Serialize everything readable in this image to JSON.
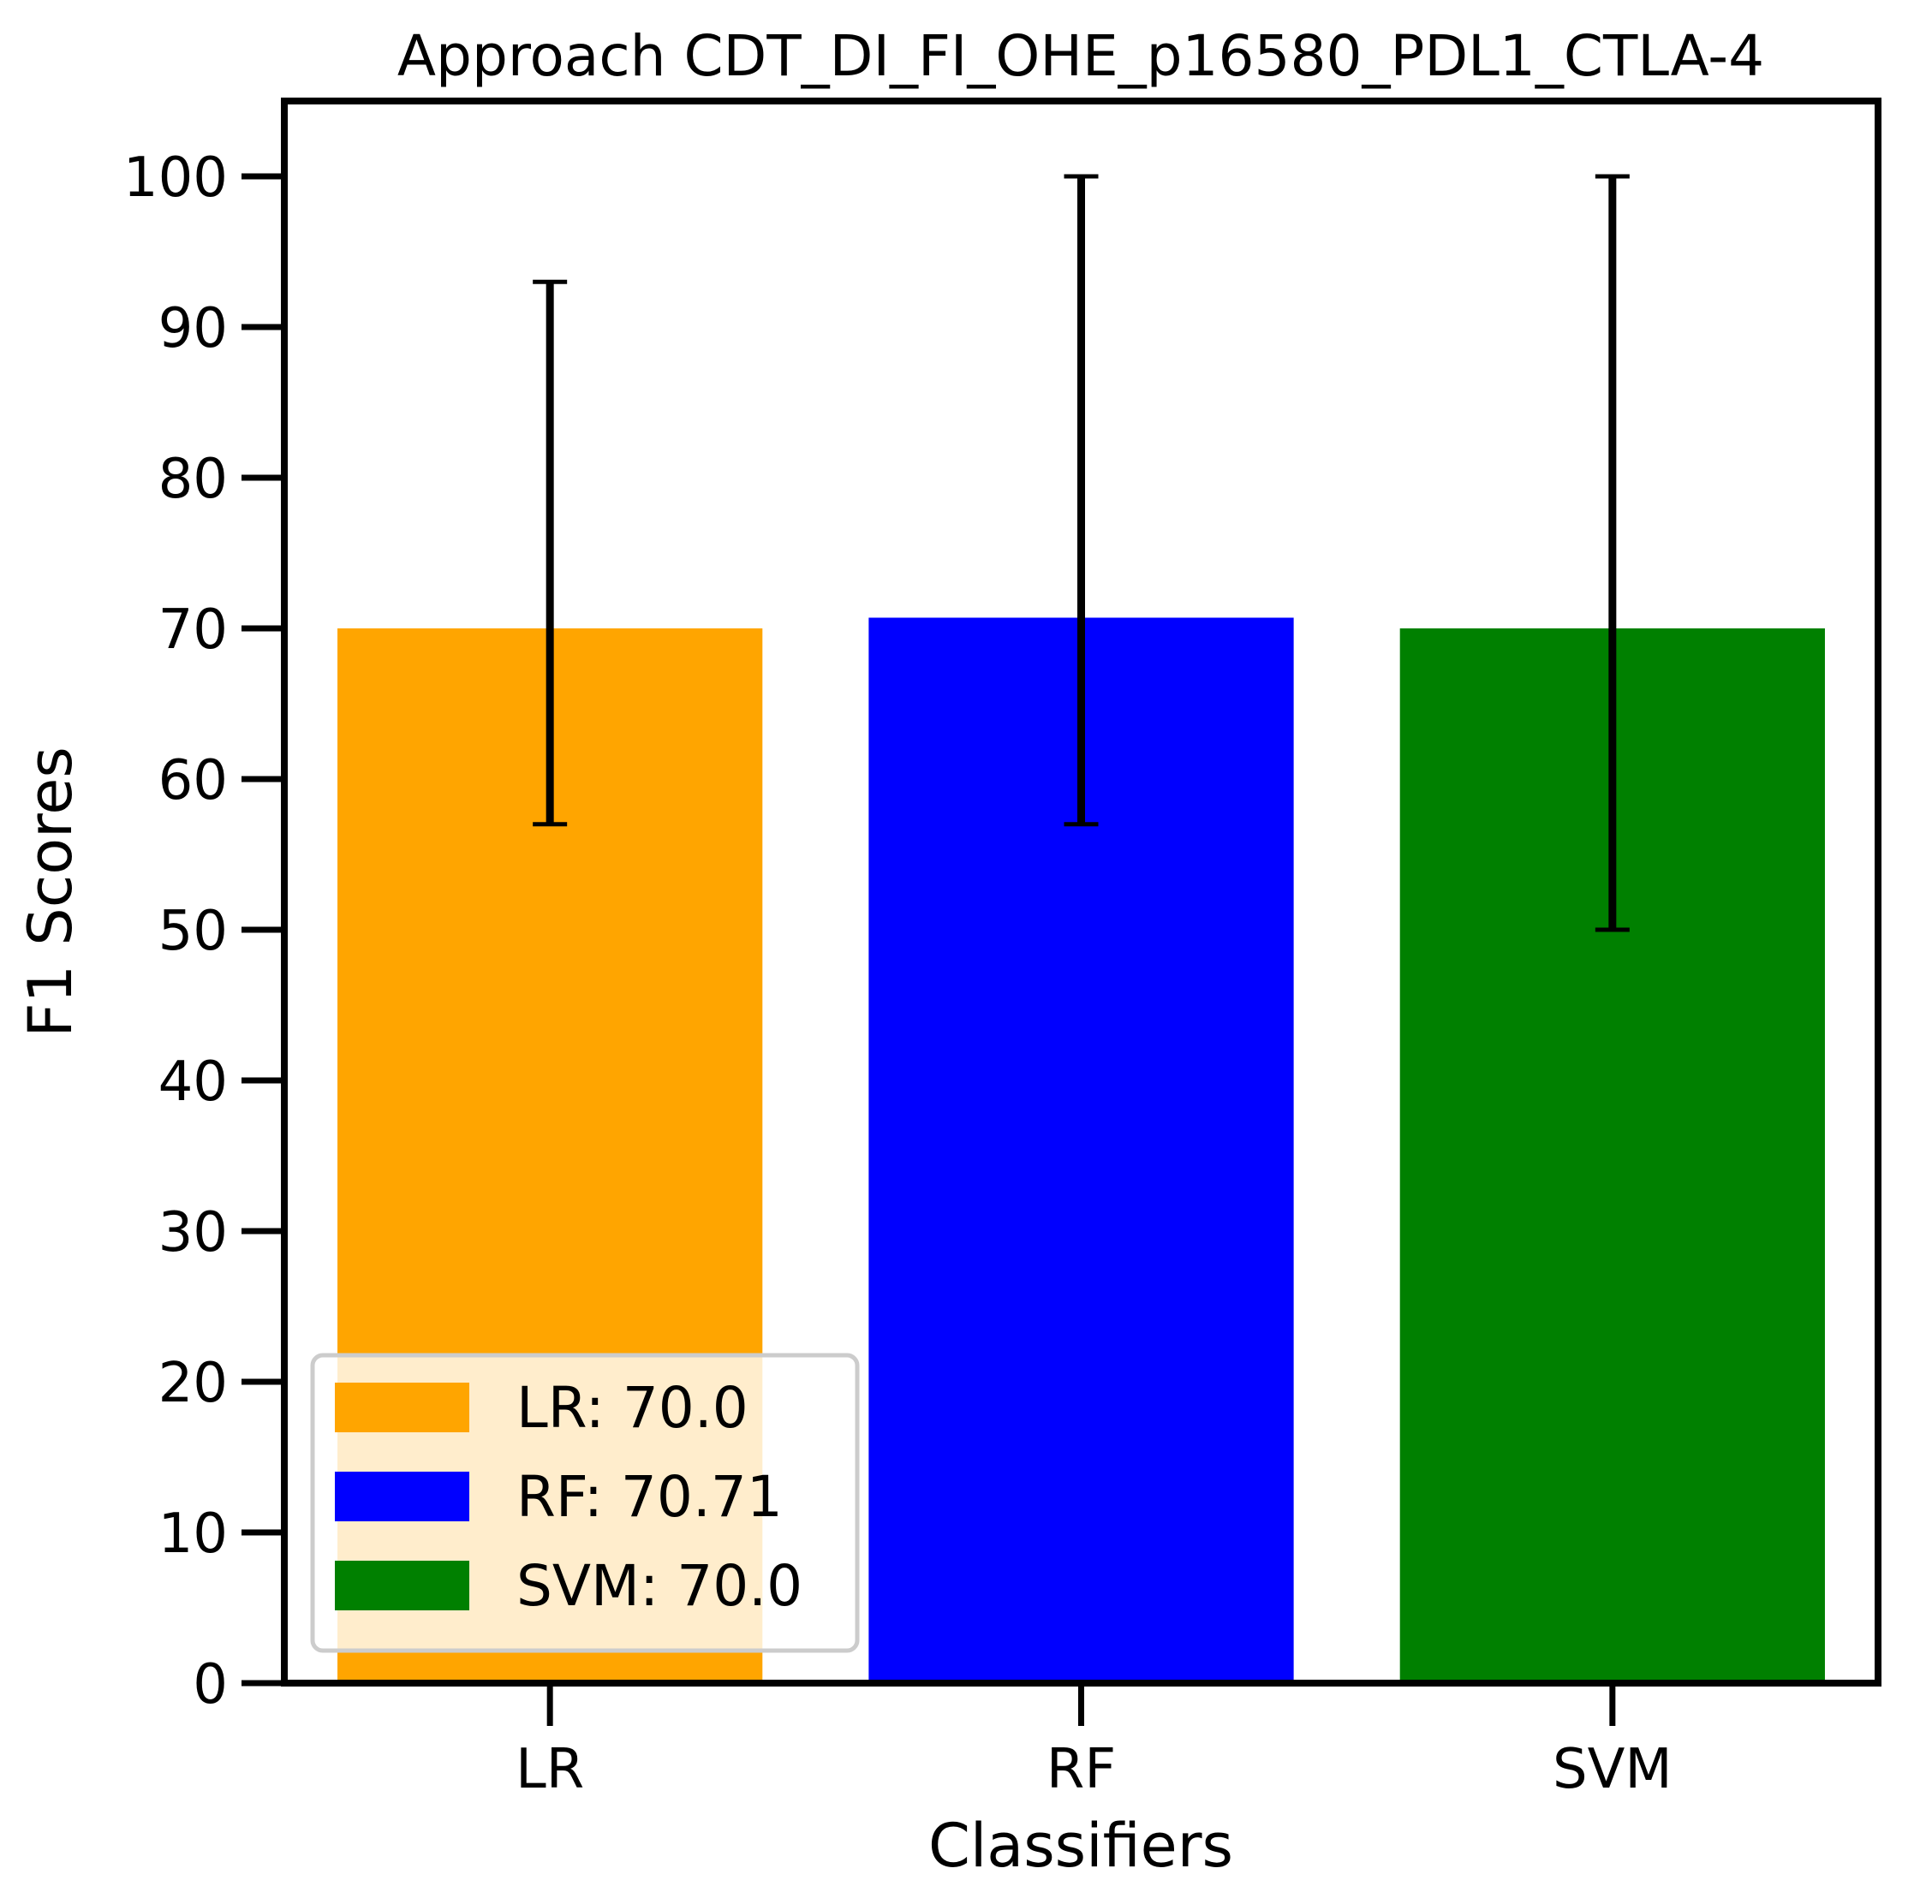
{
  "chart_data": {
    "type": "bar",
    "title": "Approach CDT_DI_FI_OHE_p16580_PDL1_CTLA-4",
    "xlabel": "Classifiers",
    "ylabel": "F1 Scores",
    "categories": [
      "LR",
      "RF",
      "SVM"
    ],
    "values": [
      70.0,
      70.71,
      70.0
    ],
    "error_low": [
      57.0,
      57.0,
      50.0
    ],
    "error_high": [
      93.0,
      100.0,
      100.0
    ],
    "colors": [
      "#ffa500",
      "#0000ff",
      "#008000"
    ],
    "ylim": [
      0,
      105
    ],
    "yticks": [
      0,
      10,
      20,
      30,
      40,
      50,
      60,
      70,
      80,
      90,
      100
    ],
    "grid": false,
    "legend": {
      "placement": "lower-left",
      "entries": [
        "LR: 70.0",
        "RF: 70.71",
        "SVM: 70.0"
      ]
    }
  }
}
